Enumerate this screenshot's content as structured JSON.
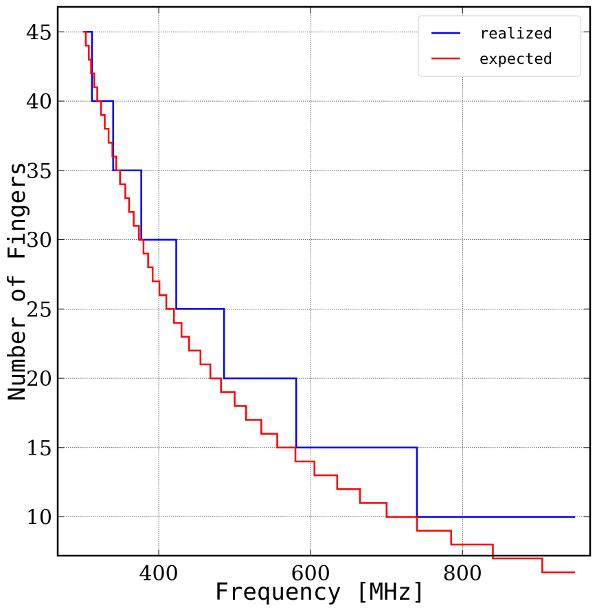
{
  "chart_data": {
    "type": "line",
    "title": "",
    "xlabel": "Frequency [MHz]",
    "ylabel": "Number of Fingers",
    "xlim": [
      267,
      968
    ],
    "ylim": [
      7.2,
      46.8
    ],
    "xticks": [
      400,
      600,
      800
    ],
    "yticks": [
      10,
      15,
      20,
      25,
      30,
      35,
      40,
      45
    ],
    "grid": true,
    "legend_position": "top-right",
    "series": [
      {
        "name": "realized",
        "color": "#0000ff",
        "step": "post",
        "x": [
          300,
          312,
          340,
          377,
          423,
          486,
          581,
          740,
          948
        ],
        "y": [
          45,
          40,
          35,
          30,
          25,
          20,
          15,
          10,
          10
        ]
      },
      {
        "name": "expected",
        "color": "#ff0000",
        "step": "post",
        "x": [
          300,
          304,
          308,
          311,
          315,
          319,
          324,
          329,
          334,
          339,
          344,
          349,
          356,
          361,
          367,
          374,
          380,
          386,
          392,
          401,
          410,
          420,
          430,
          440,
          455,
          468,
          482,
          500,
          515,
          535,
          556,
          580,
          605,
          635,
          665,
          700,
          740,
          785,
          840,
          905,
          948
        ],
        "y": [
          45,
          44,
          43,
          42,
          41,
          40,
          39,
          38,
          37,
          36,
          35,
          34,
          33,
          32,
          31,
          30,
          29,
          28,
          27,
          26,
          25,
          24,
          23,
          22,
          21,
          20,
          19,
          18,
          17,
          16,
          15,
          14,
          13,
          12,
          11,
          10,
          9,
          8,
          7,
          6,
          6
        ]
      }
    ]
  }
}
